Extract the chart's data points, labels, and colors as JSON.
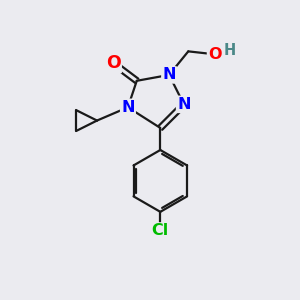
{
  "background_color": "#ebebf0",
  "bond_color": "#1a1a1a",
  "atom_colors": {
    "O": "#ff0000",
    "N": "#0000ff",
    "Cl": "#00bb00",
    "H": "#4a8888",
    "C": "#1a1a1a"
  },
  "bond_width": 1.6,
  "font_size": 11.5,
  "figsize": [
    3.0,
    3.0
  ],
  "dpi": 100
}
